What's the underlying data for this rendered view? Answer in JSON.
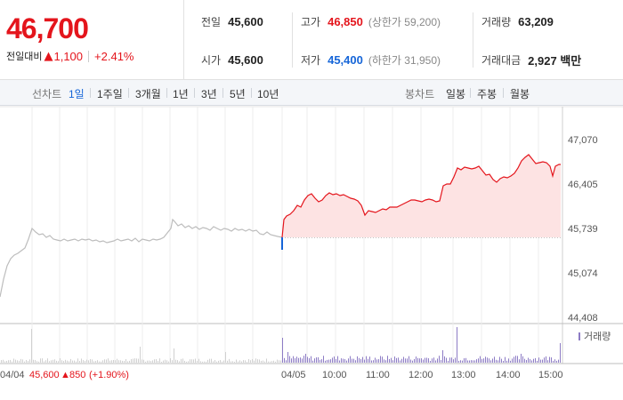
{
  "quote": {
    "price": "46,700",
    "change_label": "전일대비",
    "change_arrow": "▲",
    "change_amount": "1,100",
    "change_percent": "+2.41%",
    "colors": {
      "up": "#e4151c",
      "down": "#1565d8"
    }
  },
  "stats": {
    "prev_close": {
      "label": "전일",
      "value": "45,600"
    },
    "high": {
      "label": "고가",
      "value": "46,850",
      "limit": "(상한가 59,200)"
    },
    "volume": {
      "label": "거래량",
      "value": "63,209"
    },
    "open": {
      "label": "시가",
      "value": "45,600"
    },
    "low": {
      "label": "저가",
      "value": "45,400",
      "limit": "(하한가 31,950)"
    },
    "trade_value": {
      "label": "거래대금",
      "value": "2,927 백만"
    }
  },
  "toolbar": {
    "line_label": "선차트",
    "line_periods": [
      "1일",
      "1주일",
      "3개월",
      "1년",
      "3년",
      "5년",
      "10년"
    ],
    "active_period": "1일",
    "candle_label": "봉차트",
    "candle_periods": [
      "일봉",
      "주봉",
      "월봉"
    ]
  },
  "chart": {
    "y_ticks": [
      "47,070",
      "46,405",
      "45,739",
      "45,074",
      "44,408"
    ],
    "x_ticks": [
      "04/05",
      "10:00",
      "11:00",
      "12:00",
      "13:00",
      "14:00",
      "15:00"
    ],
    "volume_legend": "거래량",
    "prev_day_label": "04/04",
    "prev_day_price": "45,600",
    "prev_day_arrow": "▲",
    "prev_day_change": "850",
    "prev_day_percent": "(+1.90%)",
    "colors": {
      "line": "#e4151c",
      "fill": "#fde3e3",
      "prev": "#bdbdbd",
      "volume": "#8d7cc5"
    }
  }
}
